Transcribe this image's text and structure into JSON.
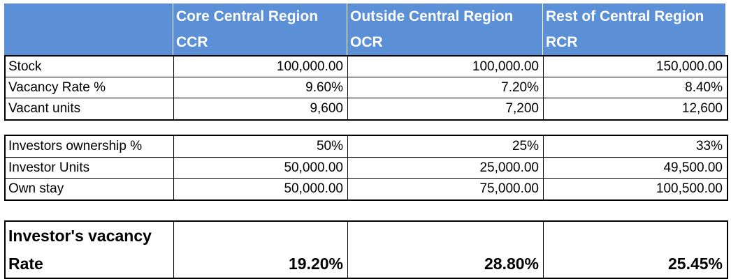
{
  "header": {
    "regions": [
      {
        "name": "Core Central Region",
        "code": "CCR"
      },
      {
        "name": "Outside Central Region",
        "code": "OCR"
      },
      {
        "name": "Rest of Central Region",
        "code": "RCR"
      }
    ],
    "colors": {
      "background": "#5b8fd6",
      "text": "#ffffff"
    }
  },
  "block1": [
    {
      "label": "Stock",
      "values": [
        "100,000.00",
        "100,000.00",
        "150,000.00"
      ]
    },
    {
      "label": "Vacancy Rate %",
      "values": [
        "9.60%",
        "7.20%",
        "8.40%"
      ]
    },
    {
      "label": "Vacant units",
      "values": [
        "9,600",
        "7,200",
        "12,600"
      ]
    }
  ],
  "block2": [
    {
      "label": "Investors ownership %",
      "values": [
        "50%",
        "25%",
        "33%"
      ]
    },
    {
      "label": "Investor Units",
      "values": [
        "50,000.00",
        "25,000.00",
        "49,500.00"
      ]
    },
    {
      "label": "Own stay",
      "values": [
        "50,000.00",
        "75,000.00",
        "100,500.00"
      ]
    }
  ],
  "result": {
    "label_line1": "Investor's vacancy",
    "label_line2": "Rate",
    "values": [
      "19.20%",
      "28.80%",
      "25.45%"
    ]
  }
}
